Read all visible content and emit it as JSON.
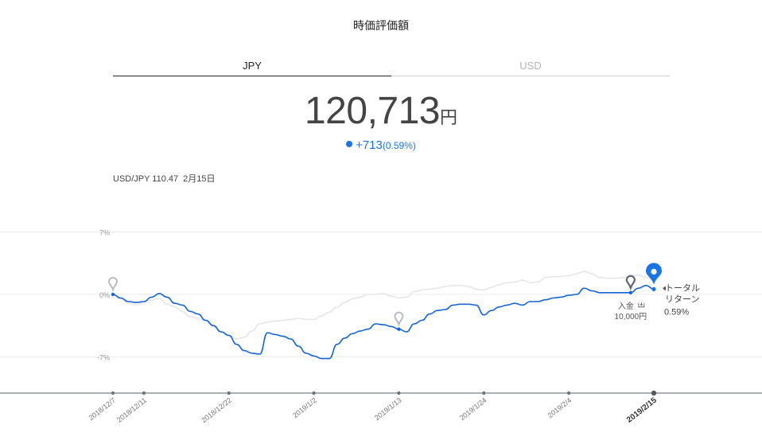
{
  "title": "時価評価額",
  "tabs": [
    {
      "label": "JPY",
      "active": true
    },
    {
      "label": "USD",
      "active": false
    }
  ],
  "valuation": {
    "amount": "120,713",
    "unit": "円"
  },
  "change": {
    "amount": "+713",
    "percent": "(0.59%)"
  },
  "fx": {
    "pair": "USD/JPY 110.47",
    "date": "2月15日"
  },
  "colors": {
    "portfolio": "#1565d8",
    "benchmark": "#e6e6e6",
    "accent": "#1976e8",
    "marker": "#5f6570"
  },
  "chart_data": {
    "type": "line",
    "y_ticks": [
      "7%",
      "0%",
      "-7%"
    ],
    "ylim": [
      -9,
      7
    ],
    "x_tick_labels": [
      "2018/12/7",
      "2018/12/11",
      "2018/12/22",
      "2019/1/2",
      "2019/1/13",
      "2019/1/24",
      "2019/2/4",
      "2019/2/15"
    ],
    "x_tick_dates": [
      "2018-12-07",
      "2018-12-11",
      "2018-12-22",
      "2019-01-02",
      "2019-01-13",
      "2019-01-24",
      "2019-02-04",
      "2019-02-15"
    ],
    "highlight_tick": "2019/2/15",
    "series": [
      {
        "role": "portfolio",
        "points": [
          [
            "2018-12-07",
            0.0
          ],
          [
            "2018-12-08",
            -0.4
          ],
          [
            "2018-12-09",
            -0.8
          ],
          [
            "2018-12-10",
            -0.9
          ],
          [
            "2018-12-11",
            -0.8
          ],
          [
            "2018-12-12",
            -0.3
          ],
          [
            "2018-12-13",
            0.1
          ],
          [
            "2018-12-14",
            -0.3
          ],
          [
            "2018-12-15",
            -1.0
          ],
          [
            "2018-12-16",
            -1.2
          ],
          [
            "2018-12-17",
            -1.9
          ],
          [
            "2018-12-18",
            -2.2
          ],
          [
            "2018-12-19",
            -2.9
          ],
          [
            "2018-12-20",
            -3.5
          ],
          [
            "2018-12-21",
            -4.2
          ],
          [
            "2018-12-22",
            -4.6
          ],
          [
            "2018-12-23",
            -5.6
          ],
          [
            "2018-12-24",
            -6.3
          ],
          [
            "2018-12-25",
            -6.6
          ],
          [
            "2018-12-26",
            -6.7
          ],
          [
            "2018-12-27",
            -4.3
          ],
          [
            "2018-12-28",
            -4.5
          ],
          [
            "2018-12-29",
            -4.7
          ],
          [
            "2018-12-30",
            -5.0
          ],
          [
            "2018-12-31",
            -5.8
          ],
          [
            "2019-01-01",
            -6.6
          ],
          [
            "2019-01-02",
            -6.9
          ],
          [
            "2019-01-03",
            -7.2
          ],
          [
            "2019-01-04",
            -7.2
          ],
          [
            "2019-01-05",
            -5.6
          ],
          [
            "2019-01-06",
            -4.9
          ],
          [
            "2019-01-07",
            -4.4
          ],
          [
            "2019-01-08",
            -4.1
          ],
          [
            "2019-01-09",
            -3.9
          ],
          [
            "2019-01-10",
            -3.3
          ],
          [
            "2019-01-11",
            -3.4
          ],
          [
            "2019-01-12",
            -3.6
          ],
          [
            "2019-01-13",
            -3.9
          ],
          [
            "2019-01-14",
            -4.2
          ],
          [
            "2019-01-15",
            -3.3
          ],
          [
            "2019-01-16",
            -2.9
          ],
          [
            "2019-01-17",
            -2.2
          ],
          [
            "2019-01-18",
            -1.8
          ],
          [
            "2019-01-19",
            -1.7
          ],
          [
            "2019-01-20",
            -1.2
          ],
          [
            "2019-01-21",
            -1.1
          ],
          [
            "2019-01-22",
            -1.1
          ],
          [
            "2019-01-23",
            -1.2
          ],
          [
            "2019-01-24",
            -2.3
          ],
          [
            "2019-01-25",
            -1.8
          ],
          [
            "2019-01-26",
            -1.4
          ],
          [
            "2019-01-27",
            -1.2
          ],
          [
            "2019-01-28",
            -1.0
          ],
          [
            "2019-01-29",
            -1.2
          ],
          [
            "2019-01-30",
            -0.8
          ],
          [
            "2019-01-31",
            -0.8
          ],
          [
            "2019-02-01",
            -0.6
          ],
          [
            "2019-02-02",
            -0.4
          ],
          [
            "2019-02-03",
            -0.3
          ],
          [
            "2019-02-04",
            -0.1
          ],
          [
            "2019-02-05",
            0.0
          ],
          [
            "2019-02-06",
            0.7
          ],
          [
            "2019-02-07",
            0.4
          ],
          [
            "2019-02-08",
            0.2
          ],
          [
            "2019-02-09",
            0.2
          ],
          [
            "2019-02-10",
            0.2
          ],
          [
            "2019-02-11",
            0.2
          ],
          [
            "2019-02-12",
            0.2
          ],
          [
            "2019-02-13",
            0.7
          ],
          [
            "2019-02-14",
            1.0
          ],
          [
            "2019-02-15",
            0.59
          ]
        ]
      },
      {
        "role": "benchmark",
        "points": [
          [
            "2018-12-07",
            0.0
          ],
          [
            "2018-12-08",
            -0.5
          ],
          [
            "2018-12-09",
            -1.0
          ],
          [
            "2018-12-10",
            -1.2
          ],
          [
            "2018-12-11",
            -0.9
          ],
          [
            "2018-12-12",
            -0.6
          ],
          [
            "2018-12-13",
            -0.5
          ],
          [
            "2018-12-14",
            -1.1
          ],
          [
            "2018-12-15",
            -1.4
          ],
          [
            "2018-12-16",
            -1.9
          ],
          [
            "2018-12-17",
            -2.5
          ],
          [
            "2018-12-18",
            -2.7
          ],
          [
            "2018-12-19",
            -3.0
          ],
          [
            "2018-12-20",
            -3.6
          ],
          [
            "2018-12-21",
            -4.3
          ],
          [
            "2018-12-22",
            -4.6
          ],
          [
            "2018-12-23",
            -5.0
          ],
          [
            "2018-12-24",
            -4.8
          ],
          [
            "2018-12-25",
            -4.1
          ],
          [
            "2018-12-26",
            -3.3
          ],
          [
            "2018-12-27",
            -3.1
          ],
          [
            "2018-12-28",
            -3.0
          ],
          [
            "2018-12-29",
            -2.9
          ],
          [
            "2018-12-30",
            -2.8
          ],
          [
            "2018-12-31",
            -2.7
          ],
          [
            "2019-01-01",
            -2.8
          ],
          [
            "2019-01-02",
            -2.8
          ],
          [
            "2019-01-03",
            -2.4
          ],
          [
            "2019-01-04",
            -2.0
          ],
          [
            "2019-01-05",
            -1.4
          ],
          [
            "2019-01-06",
            -0.9
          ],
          [
            "2019-01-07",
            -0.5
          ],
          [
            "2019-01-08",
            -0.3
          ],
          [
            "2019-01-09",
            0.0
          ],
          [
            "2019-01-10",
            0.0
          ],
          [
            "2019-01-11",
            0.1
          ],
          [
            "2019-01-12",
            -0.2
          ],
          [
            "2019-01-13",
            -0.4
          ],
          [
            "2019-01-14",
            -0.3
          ],
          [
            "2019-01-15",
            0.3
          ],
          [
            "2019-01-16",
            0.5
          ],
          [
            "2019-01-17",
            0.6
          ],
          [
            "2019-01-18",
            0.7
          ],
          [
            "2019-01-19",
            0.9
          ],
          [
            "2019-01-20",
            1.0
          ],
          [
            "2019-01-21",
            1.0
          ],
          [
            "2019-01-22",
            0.9
          ],
          [
            "2019-01-23",
            0.6
          ],
          [
            "2019-01-24",
            0.5
          ],
          [
            "2019-01-25",
            0.8
          ],
          [
            "2019-01-26",
            1.1
          ],
          [
            "2019-01-27",
            1.3
          ],
          [
            "2019-01-28",
            1.4
          ],
          [
            "2019-01-29",
            1.6
          ],
          [
            "2019-01-30",
            1.3
          ],
          [
            "2019-01-31",
            1.4
          ],
          [
            "2019-02-01",
            1.9
          ],
          [
            "2019-02-02",
            2.0
          ],
          [
            "2019-02-03",
            2.0
          ],
          [
            "2019-02-04",
            2.1
          ],
          [
            "2019-02-05",
            2.3
          ],
          [
            "2019-02-06",
            2.6
          ],
          [
            "2019-02-07",
            2.3
          ],
          [
            "2019-02-08",
            1.9
          ],
          [
            "2019-02-09",
            1.8
          ],
          [
            "2019-02-10",
            1.8
          ],
          [
            "2019-02-11",
            1.9
          ],
          [
            "2019-02-12",
            2.0
          ],
          [
            "2019-02-13",
            2.2
          ],
          [
            "2019-02-14",
            1.9
          ],
          [
            "2019-02-15",
            1.8
          ]
        ]
      }
    ],
    "markers": [
      {
        "date": "2018-12-07",
        "value": 0.0,
        "kind": "history-pin"
      },
      {
        "date": "2019-01-13",
        "value": -3.9,
        "kind": "history-pin"
      },
      {
        "date": "2019-02-12",
        "value": 0.2,
        "kind": "deposit-pin"
      },
      {
        "date": "2019-02-15",
        "value": 0.59,
        "kind": "current-pin"
      }
    ],
    "deposit_label": {
      "line1": "入金",
      "line2": "10,000円"
    },
    "total_return_label": {
      "line1": "トータル",
      "line2": "リターン",
      "value": "0.59%"
    }
  }
}
